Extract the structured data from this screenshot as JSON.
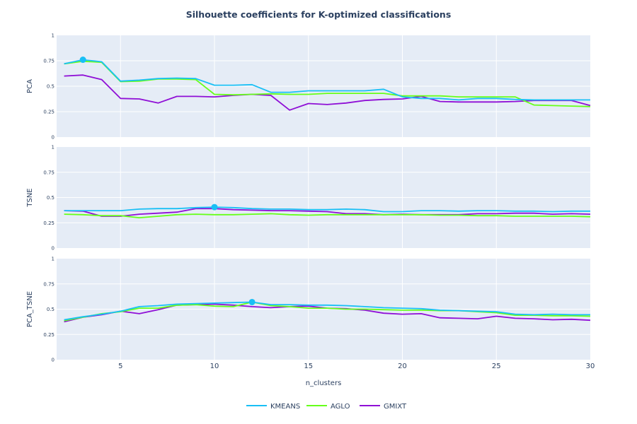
{
  "chart_data": {
    "type": "line",
    "title": "Silhouette coefficients for K-optimized classifications",
    "xlabel": "n_clusters",
    "xlim": [
      1.6,
      30
    ],
    "x_ticks": [
      "5",
      "10",
      "15",
      "20",
      "25",
      "30"
    ],
    "x_tick_values": [
      5,
      10,
      15,
      20,
      25,
      30
    ],
    "ylim": [
      0,
      1
    ],
    "y_ticks": [
      "0",
      "0.25",
      "0.5",
      "0.75",
      "1"
    ],
    "y_tick_values": [
      0,
      0.25,
      0.5,
      0.75,
      1
    ],
    "grid": true,
    "legend_position": "bottom-center",
    "colors": {
      "KMEANS": "#19bff5",
      "AGLO": "#66ff1a",
      "GMIXT": "#8f0fd6",
      "plot_bg": "#e5ecf6",
      "marker": "#19bff5"
    },
    "x": [
      2,
      3,
      4,
      5,
      6,
      7,
      8,
      9,
      10,
      11,
      12,
      13,
      14,
      15,
      16,
      17,
      18,
      19,
      20,
      21,
      22,
      23,
      24,
      25,
      26,
      27,
      28,
      29,
      30
    ],
    "panels": [
      {
        "ylabel": "PCA",
        "series": [
          {
            "name": "KMEANS",
            "values": [
              0.72,
              0.76,
              0.74,
              0.55,
              0.56,
              0.575,
              0.58,
              0.575,
              0.51,
              0.51,
              0.515,
              0.44,
              0.44,
              0.455,
              0.455,
              0.455,
              0.455,
              0.47,
              0.395,
              0.38,
              0.38,
              0.365,
              0.38,
              0.38,
              0.37,
              0.365,
              0.365,
              0.365,
              0.365
            ]
          },
          {
            "name": "AGLO",
            "values": [
              0.72,
              0.745,
              0.735,
              0.545,
              0.55,
              0.57,
              0.57,
              0.565,
              0.42,
              0.415,
              0.42,
              0.425,
              0.42,
              0.42,
              0.43,
              0.43,
              0.43,
              0.43,
              0.405,
              0.405,
              0.405,
              0.395,
              0.395,
              0.395,
              0.395,
              0.315,
              0.31,
              0.305,
              0.3
            ]
          },
          {
            "name": "GMIXT",
            "values": [
              0.6,
              0.61,
              0.565,
              0.38,
              0.375,
              0.335,
              0.4,
              0.4,
              0.395,
              0.41,
              0.42,
              0.41,
              0.265,
              0.33,
              0.32,
              0.335,
              0.36,
              0.37,
              0.375,
              0.4,
              0.35,
              0.345,
              0.345,
              0.345,
              0.35,
              0.36,
              0.36,
              0.36,
              0.31
            ]
          }
        ],
        "highlight": {
          "x": 3,
          "y": 0.76
        }
      },
      {
        "ylabel": "TSNE",
        "series": [
          {
            "name": "KMEANS",
            "values": [
              0.37,
              0.37,
              0.37,
              0.37,
              0.385,
              0.39,
              0.39,
              0.4,
              0.405,
              0.4,
              0.39,
              0.385,
              0.385,
              0.38,
              0.38,
              0.385,
              0.38,
              0.36,
              0.36,
              0.37,
              0.37,
              0.365,
              0.37,
              0.37,
              0.365,
              0.365,
              0.36,
              0.365,
              0.365
            ]
          },
          {
            "name": "AGLO",
            "values": [
              0.335,
              0.33,
              0.32,
              0.32,
              0.3,
              0.315,
              0.33,
              0.335,
              0.33,
              0.33,
              0.335,
              0.34,
              0.33,
              0.325,
              0.33,
              0.33,
              0.33,
              0.33,
              0.33,
              0.33,
              0.325,
              0.325,
              0.32,
              0.32,
              0.315,
              0.315,
              0.315,
              0.315,
              0.31
            ]
          },
          {
            "name": "GMIXT",
            "values": [
              0.37,
              0.365,
              0.315,
              0.315,
              0.335,
              0.345,
              0.355,
              0.39,
              0.39,
              0.38,
              0.375,
              0.37,
              0.37,
              0.365,
              0.36,
              0.34,
              0.34,
              0.33,
              0.335,
              0.33,
              0.33,
              0.33,
              0.34,
              0.34,
              0.345,
              0.345,
              0.335,
              0.34,
              0.335
            ]
          }
        ],
        "highlight": {
          "x": 10,
          "y": 0.405
        }
      },
      {
        "ylabel": "PCA_TSNE",
        "series": [
          {
            "name": "KMEANS",
            "values": [
              0.395,
              0.425,
              0.45,
              0.48,
              0.525,
              0.535,
              0.55,
              0.555,
              0.56,
              0.565,
              0.57,
              0.545,
              0.545,
              0.54,
              0.54,
              0.535,
              0.525,
              0.515,
              0.51,
              0.505,
              0.49,
              0.485,
              0.48,
              0.475,
              0.45,
              0.445,
              0.45,
              0.445,
              0.445
            ]
          },
          {
            "name": "AGLO",
            "values": [
              0.385,
              0.42,
              0.455,
              0.475,
              0.51,
              0.51,
              0.54,
              0.545,
              0.53,
              0.525,
              0.57,
              0.535,
              0.525,
              0.51,
              0.51,
              0.5,
              0.5,
              0.495,
              0.49,
              0.49,
              0.485,
              0.485,
              0.475,
              0.465,
              0.44,
              0.44,
              0.435,
              0.435,
              0.43
            ]
          },
          {
            "name": "GMIXT",
            "values": [
              0.375,
              0.42,
              0.445,
              0.48,
              0.455,
              0.495,
              0.54,
              0.545,
              0.55,
              0.54,
              0.525,
              0.515,
              0.525,
              0.53,
              0.51,
              0.505,
              0.49,
              0.46,
              0.45,
              0.455,
              0.415,
              0.41,
              0.405,
              0.43,
              0.41,
              0.405,
              0.395,
              0.4,
              0.39
            ]
          }
        ],
        "highlight": {
          "x": 12,
          "y": 0.57
        }
      }
    ],
    "legend": [
      "KMEANS",
      "AGLO",
      "GMIXT"
    ]
  }
}
